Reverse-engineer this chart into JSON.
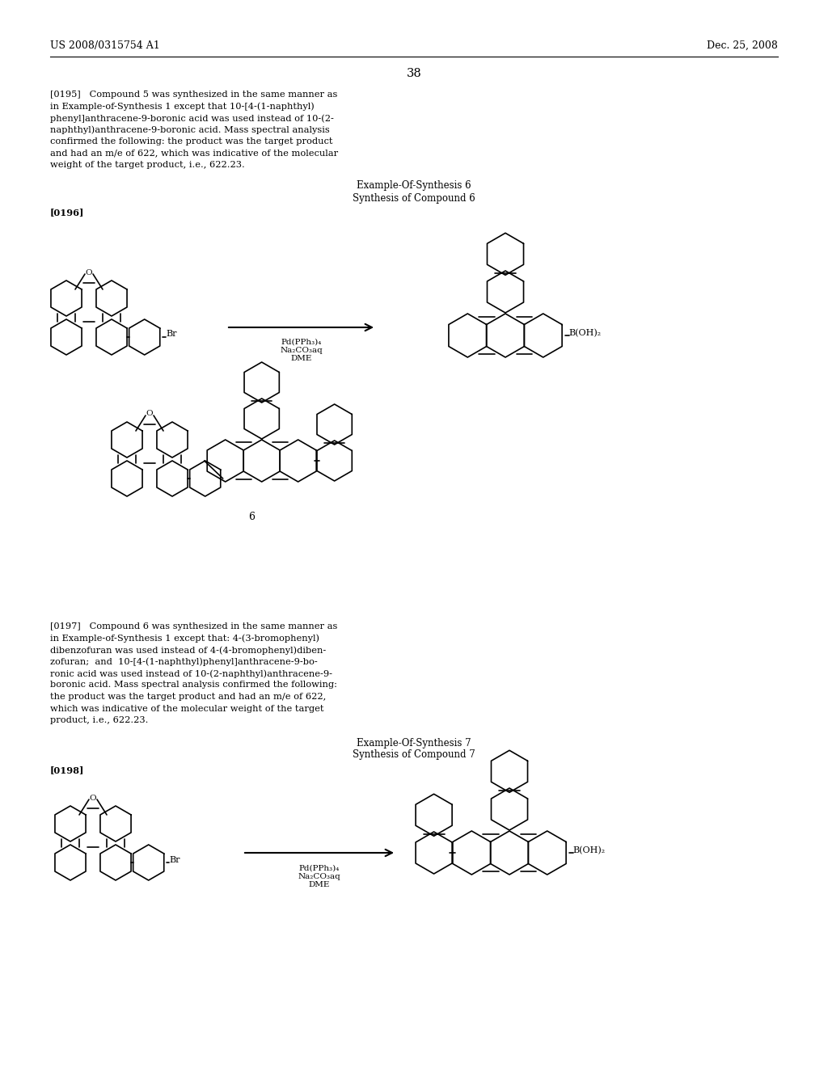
{
  "background_color": "#ffffff",
  "header_left": "US 2008/0315754 A1",
  "header_right": "Dec. 25, 2008",
  "page_number": "38",
  "para_0195_line1": "[0195]   Compound 5 was synthesized in the same manner as",
  "para_0195_line2": "in Example-of-Synthesis 1 except that 10-[4-(1-naphthyl)",
  "para_0195_line3": "phenyl]anthracene-9-boronic acid was used instead of 10-(2-",
  "para_0195_line4": "naphthyl)anthracene-9-boronic acid. Mass spectral analysis",
  "para_0195_line5": "confirmed the following: the product was the target product",
  "para_0195_line6": "and had an m/e of 622, which was indicative of the molecular",
  "para_0195_line7": "weight of the target product, i.e., 622.23.",
  "example6_title1": "Example-Of-Synthesis 6",
  "example6_title2": "Synthesis of Compound 6",
  "para_0196": "[0196]",
  "reaction6_line1": "Pd(PPh₃)₄",
  "reaction6_line2": "Na₂CO₃aq",
  "reaction6_line3": "DME",
  "compound_label6": "6",
  "br_label": "Br",
  "o_label": "O",
  "b_label6": "B(OH)₂",
  "para_0197_line1": "[0197]   Compound 6 was synthesized in the same manner as",
  "para_0197_line2": "in Example-of-Synthesis 1 except that: 4-(3-bromophenyl)",
  "para_0197_line3": "dibenzofuran was used instead of 4-(4-bromophenyl)diben-",
  "para_0197_line4": "zofuran;  and  10-[4-(1-naphthyl)phenyl]anthracene-9-bo-",
  "para_0197_line5": "ronic acid was used instead of 10-(2-naphthyl)anthracene-9-",
  "para_0197_line6": "boronic acid. Mass spectral analysis confirmed the following:",
  "para_0197_line7": "the product was the target product and had an m/e of 622,",
  "para_0197_line8": "which was indicative of the molecular weight of the target",
  "para_0197_line9": "product, i.e., 622.23.",
  "example7_title1": "Example-Of-Synthesis 7",
  "example7_title2": "Synthesis of Compound 7",
  "para_0198": "[0198]",
  "reaction7_line1": "Pd(PPh₃)₄",
  "reaction7_line2": "Na₂CO₃aq",
  "reaction7_line3": "DME",
  "b_label7": "B(OH)₂"
}
